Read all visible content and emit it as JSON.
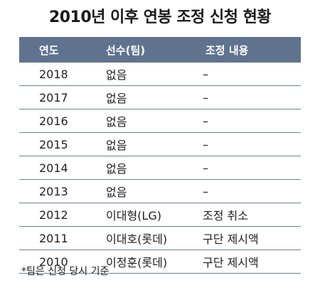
{
  "title": "2010년 이후 연봉 조정 신청 현황",
  "table": {
    "headers": [
      "연도",
      "선수(팀)",
      "조정 내용"
    ],
    "rows": [
      [
        "2018",
        "없음",
        "–"
      ],
      [
        "2017",
        "없음",
        "–"
      ],
      [
        "2016",
        "없음",
        "–"
      ],
      [
        "2015",
        "없음",
        "–"
      ],
      [
        "2014",
        "없음",
        "–"
      ],
      [
        "2013",
        "없음",
        "–"
      ],
      [
        "2012",
        "이대형(LG)",
        "조정 취소"
      ],
      [
        "2011",
        "이대호(롯데)",
        "구단 제시액"
      ],
      [
        "2010",
        "이정훈(롯데)",
        "구단 제시액"
      ]
    ]
  },
  "footnote": "*팀은 신청 당시 기준",
  "colors": {
    "header_bg": "#5f738f",
    "header_text": "#ffffff",
    "rule": "#6f7f93"
  }
}
